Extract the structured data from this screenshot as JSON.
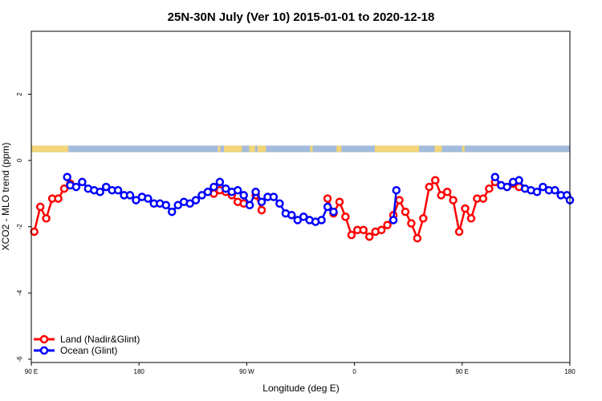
{
  "chart_data": {
    "type": "line",
    "title": "25N-30N July (Ver 10)   2015-01-01 to 2020-12-18",
    "xlabel": "Longitude (deg E)",
    "ylabel": "XCO2 - MLO trend (ppm)",
    "xlim": [
      90,
      540
    ],
    "ylim": [
      -6.1,
      3.9
    ],
    "x_ticks": [
      90,
      180,
      270,
      360,
      450,
      540
    ],
    "x_tick_labels": [
      "90 E",
      "180",
      "90 W",
      "0",
      "90 E",
      "180"
    ],
    "y_ticks": [
      -6,
      -4,
      -2,
      0,
      2
    ],
    "y_tick_labels": [
      "-6",
      "-4",
      "-2",
      "0",
      "2"
    ],
    "legend_position": "bottom-left",
    "land_ocean_strip": {
      "y_range": [
        0.25,
        0.45
      ],
      "land_color": "#f2d57a",
      "ocean_color": "#a3bbdc",
      "land_segments": [
        [
          90,
          121
        ],
        [
          246,
          248
        ],
        [
          251,
          266
        ],
        [
          272,
          277
        ],
        [
          279,
          286
        ],
        [
          323,
          325
        ],
        [
          345,
          349
        ],
        [
          377,
          414
        ],
        [
          427,
          433
        ],
        [
          450,
          452
        ]
      ]
    },
    "series": [
      {
        "name": "Land (Nadir&Glint)",
        "color": "#ff0000",
        "segments": [
          {
            "x": [
              92.5,
              97.5,
              102.5,
              107.5,
              112.5,
              117.5,
              122.5
            ],
            "y": [
              -2.15,
              -1.4,
              -1.75,
              -1.15,
              -1.15,
              -0.85,
              -0.7
            ]
          },
          {
            "x": [
              242.5,
              247.5,
              252.5,
              257.5,
              262.5,
              267.5
            ],
            "y": [
              -1.0,
              -0.9,
              -0.95,
              -1.05,
              -1.25,
              -1.3
            ]
          },
          {
            "x": [
              277.5,
              282.5
            ],
            "y": [
              -1.05,
              -1.5
            ]
          },
          {
            "x": [
              337.5,
              342.5,
              347.5,
              352.5,
              357.5,
              362.5,
              367.5,
              372.5,
              377.5,
              382.5,
              387.5,
              392.5,
              397.5,
              402.5,
              407.5,
              412.5,
              417.5,
              422.5,
              427.5,
              432.5,
              437.5,
              442.5,
              447.5,
              452.5,
              457.5,
              462.5,
              467.5,
              472.5,
              477.5,
              482.5,
              487.5,
              492.5,
              497.5
            ],
            "y": [
              -1.15,
              -1.6,
              -1.25,
              -1.7,
              -2.25,
              -2.1,
              -2.1,
              -2.3,
              -2.15,
              -2.1,
              -1.95,
              -1.65,
              -1.2,
              -1.55,
              -1.9,
              -2.35,
              -1.75,
              -0.8,
              -0.6,
              -1.05,
              -0.95,
              -1.2,
              -2.15,
              -1.45,
              -1.75,
              -1.15,
              -1.15,
              -0.85,
              -0.65,
              -0.75,
              -0.8,
              -0.7,
              -0.8
            ]
          }
        ]
      },
      {
        "name": "Ocean (Glint)",
        "color": "#0000ff",
        "segments": [
          {
            "x": [
              120,
              122.5,
              127.5,
              132.5,
              137.5,
              142.5,
              147.5,
              152.5,
              157.5,
              162.5,
              167.5,
              172.5,
              177.5,
              182.5,
              187.5,
              192.5,
              197.5,
              202.5,
              207.5,
              212.5,
              217.5,
              222.5,
              227.5,
              232.5,
              237.5,
              242.5,
              247.5,
              252.5,
              257.5
            ],
            "y": [
              -0.5,
              -0.75,
              -0.8,
              -0.65,
              -0.85,
              -0.9,
              -0.95,
              -0.8,
              -0.9,
              -0.9,
              -1.05,
              -1.05,
              -1.2,
              -1.1,
              -1.15,
              -1.3,
              -1.3,
              -1.35,
              -1.55,
              -1.35,
              -1.25,
              -1.3,
              -1.2,
              -1.05,
              -0.95,
              -0.8,
              -0.65,
              -0.85,
              -0.95
            ]
          },
          {
            "x": [
              262.5,
              267.5,
              272.5,
              277.5,
              282.5,
              287.5,
              292.5,
              297.5,
              302.5,
              307.5,
              312.5,
              317.5,
              322.5,
              327.5,
              332.5,
              337.5,
              342.5
            ],
            "y": [
              -0.9,
              -1.05,
              -1.35,
              -0.95,
              -1.25,
              -1.1,
              -1.1,
              -1.3,
              -1.6,
              -1.65,
              -1.8,
              -1.7,
              -1.8,
              -1.85,
              -1.8,
              -1.4,
              -1.55
            ]
          },
          {
            "x": [
              392.5,
              395
            ],
            "y": [
              -1.8,
              -0.9
            ]
          },
          {
            "x": [
              497.5,
              502.5,
              507.5,
              512.5,
              517.5,
              522.5,
              527.5,
              532.5,
              537.5,
              540
            ],
            "y": [
              -0.6,
              -0.85,
              -0.9,
              -0.95,
              -0.8,
              -0.9,
              -0.9,
              -1.05,
              -1.05,
              -1.2
            ]
          },
          {
            "x": [
              477.5,
              482.5,
              487.5,
              492.5
            ],
            "y": [
              -0.5,
              -0.75,
              -0.8,
              -0.65
            ]
          }
        ]
      }
    ]
  }
}
